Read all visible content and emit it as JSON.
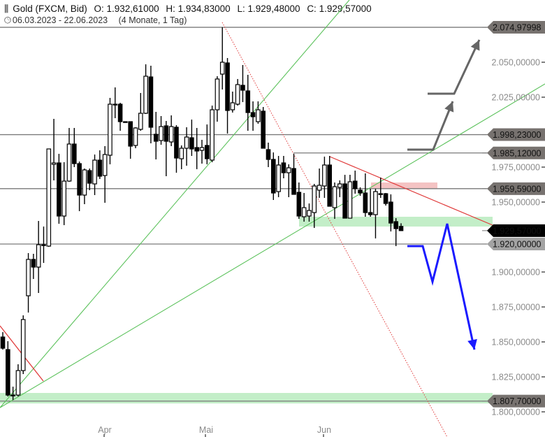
{
  "header": {
    "instrument": "Gold (FXCM, Bid)",
    "open": "O: 1.932,61000",
    "high": "H: 1.934,83000",
    "low": "L: 1.929,48000",
    "close": "C: 1.929,57000",
    "range": "06.03.2023 - 22.06.2023",
    "period": "(4 Monate, 1 Tag)",
    "icon": "indicator-bars-icon",
    "clock_icon": "clock-icon"
  },
  "chart_data": {
    "type": "candlestick",
    "title": "Gold (FXCM, Bid)",
    "x_labels": [
      "Apr",
      "Mai",
      "Jun"
    ],
    "ylim": [
      1795,
      2078
    ],
    "y_ticks": [
      "2.050,00000",
      "2.025,00000",
      "1.975,00000",
      "1.950,00000",
      "1.900,00000",
      "1.875,00000",
      "1.850,00000",
      "1.825,00000",
      "1.800,00000"
    ],
    "y_tick_values": [
      2050,
      2025,
      1975,
      1950,
      1900,
      1875,
      1850,
      1825,
      1800
    ],
    "levels": [
      {
        "value": 2074.97998,
        "label": "2.074,97998",
        "style": "dark"
      },
      {
        "value": 1998.23,
        "label": "1.998,23000",
        "style": "dark"
      },
      {
        "value": 1985.12,
        "label": "1.985,12000",
        "style": "dark"
      },
      {
        "value": 1959.59,
        "label": "1.959,59000",
        "style": "dark"
      },
      {
        "value": 1929.57,
        "label": "1.929,57000",
        "style": "current"
      },
      {
        "value": 1920.0,
        "label": "1.920,00000",
        "style": "light"
      },
      {
        "value": 1807.7,
        "label": "1.807,70000",
        "style": "dark"
      }
    ],
    "colors": {
      "bull": "#ffffff",
      "bear": "#000000",
      "support_zone": "#c3eec8",
      "resistance_zone": "#f4c3c3",
      "trend_green": "#5cc25c",
      "trend_red": "#e03b3b",
      "scenario_arrow": "#1a1aff",
      "target_arrow": "#666666",
      "level_dark": "#77726f",
      "level_light": "#a3a3a3",
      "level_current": "#000000"
    },
    "ohlc": [
      [
        1853.5,
        1857,
        1844.5,
        1845.5
      ],
      [
        1844.5,
        1850.5,
        1811,
        1812
      ],
      [
        1812,
        1818,
        1808.5,
        1812
      ],
      [
        1812,
        1834,
        1811,
        1829.5
      ],
      [
        1829.5,
        1869,
        1827,
        1866
      ],
      [
        1883,
        1913.5,
        1871,
        1909
      ],
      [
        1909,
        1913,
        1895,
        1903.5
      ],
      [
        1903.5,
        1936.5,
        1885,
        1919.5
      ],
      [
        1919,
        1932.5,
        1906.5,
        1919.5
      ],
      [
        1918.5,
        1988,
        1918,
        1988
      ],
      [
        1977,
        2009.5,
        1965.5,
        1978
      ],
      [
        1978,
        1984.5,
        1934.5,
        1940
      ],
      [
        1940,
        1978.5,
        1933.5,
        1965
      ],
      [
        1965,
        2003,
        1964.5,
        1991.5
      ],
      [
        1991.5,
        2003,
        1975,
        1977.5
      ],
      [
        1977.5,
        1979,
        1943.5,
        1955
      ],
      [
        1955,
        1974,
        1948.5,
        1973
      ],
      [
        1972.5,
        1974,
        1958.5,
        1963.5
      ],
      [
        1963,
        1984,
        1955,
        1980
      ],
      [
        1980,
        1987,
        1966.5,
        1968.5
      ],
      [
        1969,
        1990,
        1949.5,
        1984
      ],
      [
        1983.5,
        2024.5,
        1977,
        2020
      ],
      [
        2020,
        2032,
        2010,
        2020
      ],
      [
        2020,
        2021,
        2001,
        2007.5
      ],
      [
        2007.5,
        2007.5,
        2007.5,
        2007.5
      ],
      [
        2007.5,
        2007.5,
        1981,
        1990
      ],
      [
        1990.5,
        2003.5,
        1988.5,
        2003
      ],
      [
        2002,
        2028,
        2001,
        2013.5
      ],
      [
        2013.5,
        2048.5,
        2013,
        2040
      ],
      [
        2039.5,
        2047.5,
        1992,
        2003.5
      ],
      [
        1998.5,
        2014.5,
        1980.5,
        1993.5
      ],
      [
        1994,
        2011.5,
        1991,
        2004
      ],
      [
        2004.5,
        2008,
        1968.5,
        1993.5
      ],
      [
        1993,
        2012,
        1990,
        2004
      ],
      [
        2003.5,
        2005,
        1971,
        1981.5
      ],
      [
        1981,
        1990.5,
        1973.5,
        1988.5
      ],
      [
        1988.5,
        2003.5,
        1976,
        1996.5
      ],
      [
        1996,
        2009,
        1983,
        1988
      ],
      [
        1989,
        2003,
        1973.5,
        1986.5
      ],
      [
        1987,
        1994.5,
        1977.5,
        1989
      ],
      [
        1990.5,
        2005.5,
        1977,
        1981
      ],
      [
        1980,
        2019,
        1978.5,
        2016
      ],
      [
        2016,
        2040,
        2007.5,
        2038
      ],
      [
        2041.5,
        2074.98,
        2030.5,
        2050
      ],
      [
        2049.5,
        2053,
        1999,
        2015.5
      ],
      [
        2016,
        2029,
        2014,
        2021
      ],
      [
        2020,
        2038,
        2019,
        2034
      ],
      [
        2033.5,
        2048,
        2021.5,
        2030
      ],
      [
        2029.5,
        2041,
        2001,
        2014
      ],
      [
        2014,
        2022,
        2001,
        2011
      ],
      [
        2007.5,
        2022,
        2006,
        2016
      ],
      [
        2015,
        2018,
        1988.5,
        1988.5
      ],
      [
        1987.5,
        1992.5,
        1975,
        1980.5
      ],
      [
        1980.5,
        1985.5,
        1951.5,
        1956.5
      ],
      [
        1957.5,
        1983,
        1953.5,
        1976.5
      ],
      [
        1978,
        1983,
        1967,
        1971
      ],
      [
        1971,
        1977,
        1953.5,
        1974.5
      ],
      [
        1974,
        1984.5,
        1955.5,
        1955.5
      ],
      [
        1957,
        1964,
        1938,
        1940
      ],
      [
        1939.5,
        1956.5,
        1936,
        1946
      ],
      [
        1940,
        1949,
        1936,
        1944
      ],
      [
        1942.5,
        1963,
        1931.5,
        1961.5
      ],
      [
        1958.5,
        1974,
        1953,
        1962
      ],
      [
        1961.5,
        1982.5,
        1953,
        1976.5
      ],
      [
        1976.5,
        1983,
        1947,
        1947
      ],
      [
        1946,
        1964,
        1938,
        1961
      ],
      [
        1960.5,
        1965.5,
        1953.5,
        1963
      ],
      [
        1963,
        1969.5,
        1938.5,
        1938.5
      ],
      [
        1938.5,
        1969.5,
        1938.5,
        1964.5
      ],
      [
        1965,
        1972.5,
        1956,
        1959.5
      ],
      [
        1958.5,
        1960.5,
        1954.5,
        1956.5
      ],
      [
        1956.5,
        1970.5,
        1939.5,
        1942.5
      ],
      [
        1942.5,
        1959.5,
        1939.5,
        1941
      ],
      [
        1941,
        1959.5,
        1924,
        1957.5
      ],
      [
        1956,
        1967.5,
        1953,
        1956
      ],
      [
        1956,
        1956.5,
        1947.5,
        1949
      ],
      [
        1950,
        1955.5,
        1929,
        1935
      ],
      [
        1936,
        1938.5,
        1918.5,
        1931
      ],
      [
        1932.61,
        1934.83,
        1929.48,
        1929.57
      ]
    ]
  }
}
